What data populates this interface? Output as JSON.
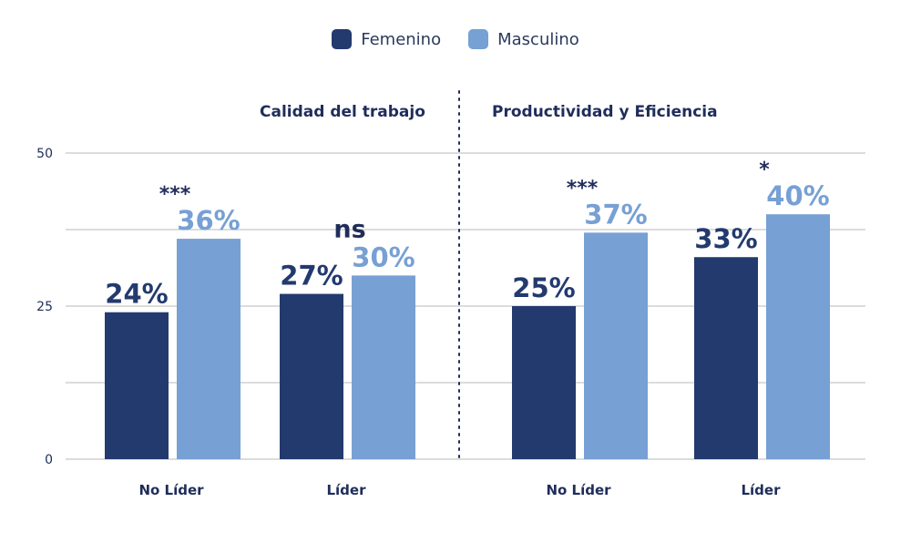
{
  "chart_data": {
    "type": "bar",
    "legend": [
      {
        "name": "Femenino",
        "color": "#233a6e"
      },
      {
        "name": "Masculino",
        "color": "#77a0d4"
      }
    ],
    "y_ticks": [
      0,
      25,
      50
    ],
    "ylim": [
      0,
      50
    ],
    "grid": true,
    "panels": [
      {
        "title": "Calidad del trabajo",
        "groups": [
          {
            "category": "No Líder",
            "values": [
              24,
              36
            ],
            "labels": [
              "24%",
              "36%"
            ],
            "significance": "***"
          },
          {
            "category": "Líder",
            "values": [
              27,
              30
            ],
            "labels": [
              "27%",
              "30%"
            ],
            "significance": "ns"
          }
        ]
      },
      {
        "title": "Productividad y Eficiencia",
        "groups": [
          {
            "category": "No Líder",
            "values": [
              25,
              37
            ],
            "labels": [
              "25%",
              "37%"
            ],
            "significance": "***"
          },
          {
            "category": "Líder",
            "values": [
              33,
              40
            ],
            "labels": [
              "33%",
              "40%"
            ],
            "significance": "*"
          }
        ]
      }
    ]
  }
}
